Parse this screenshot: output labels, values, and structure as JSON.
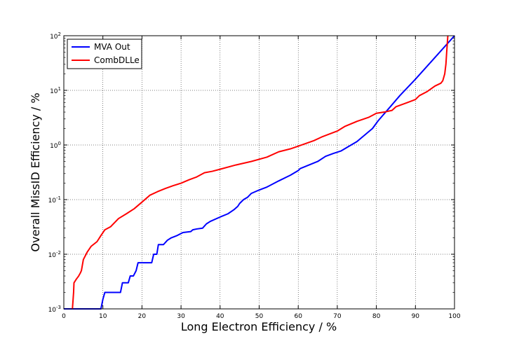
{
  "chart_data": {
    "type": "line",
    "title": "",
    "xlabel": "Long Electron Efficiency / %",
    "ylabel": "Overall MissID Efficiency / %",
    "xlim": [
      0,
      100
    ],
    "ylim": [
      0.001,
      100
    ],
    "yscale": "log",
    "grid": true,
    "legend_position": "top-left",
    "x_ticks": [
      "0",
      "10",
      "20",
      "30",
      "40",
      "50",
      "60",
      "70",
      "80",
      "90",
      "100"
    ],
    "y_ticks": [
      {
        "value": 0.001,
        "base": "10",
        "exp": "-3"
      },
      {
        "value": 0.01,
        "base": "10",
        "exp": "-2"
      },
      {
        "value": 0.1,
        "base": "10",
        "exp": "-1"
      },
      {
        "value": 1,
        "base": "10",
        "exp": "0"
      },
      {
        "value": 10,
        "base": "10",
        "exp": "1"
      },
      {
        "value": 100,
        "base": "10",
        "exp": "2"
      }
    ],
    "series": [
      {
        "name": "MVA Out",
        "color": "#0000ff",
        "points": [
          [
            0.0,
            0.001
          ],
          [
            9.5,
            0.001
          ],
          [
            10.0,
            0.0015
          ],
          [
            10.5,
            0.002
          ],
          [
            14.5,
            0.002
          ],
          [
            15.0,
            0.003
          ],
          [
            16.5,
            0.003
          ],
          [
            17.0,
            0.004
          ],
          [
            17.8,
            0.004
          ],
          [
            18.5,
            0.005
          ],
          [
            19.0,
            0.007
          ],
          [
            22.5,
            0.007
          ],
          [
            23.0,
            0.01
          ],
          [
            23.8,
            0.01
          ],
          [
            24.2,
            0.015
          ],
          [
            25.5,
            0.015
          ],
          [
            26.5,
            0.018
          ],
          [
            27.5,
            0.02
          ],
          [
            29.0,
            0.022
          ],
          [
            30.5,
            0.025
          ],
          [
            32.5,
            0.026
          ],
          [
            33.0,
            0.028
          ],
          [
            34.0,
            0.029
          ],
          [
            35.5,
            0.03
          ],
          [
            36.5,
            0.036
          ],
          [
            37.5,
            0.04
          ],
          [
            40.0,
            0.048
          ],
          [
            42.0,
            0.055
          ],
          [
            43.5,
            0.065
          ],
          [
            44.5,
            0.075
          ],
          [
            45.0,
            0.085
          ],
          [
            46.0,
            0.1
          ],
          [
            47.0,
            0.11
          ],
          [
            48.0,
            0.13
          ],
          [
            50.0,
            0.15
          ],
          [
            52.0,
            0.17
          ],
          [
            55.0,
            0.22
          ],
          [
            58.0,
            0.28
          ],
          [
            60.0,
            0.34
          ],
          [
            60.5,
            0.37
          ],
          [
            65.0,
            0.5
          ],
          [
            67.0,
            0.62
          ],
          [
            69.0,
            0.7
          ],
          [
            71.0,
            0.78
          ],
          [
            73.0,
            0.95
          ],
          [
            75.0,
            1.15
          ],
          [
            79.0,
            2.0
          ],
          [
            80.5,
            2.8
          ],
          [
            83.0,
            4.5
          ],
          [
            86.0,
            8.0
          ],
          [
            90.0,
            16.0
          ],
          [
            95.0,
            40.0
          ],
          [
            100.0,
            100.0
          ]
        ]
      },
      {
        "name": "CombDLLe",
        "color": "#ff0000",
        "points": [
          [
            2.2,
            0.001
          ],
          [
            2.5,
            0.002
          ],
          [
            2.6,
            0.003
          ],
          [
            3.2,
            0.0035
          ],
          [
            3.8,
            0.004
          ],
          [
            4.2,
            0.0045
          ],
          [
            4.5,
            0.005
          ],
          [
            5.0,
            0.008
          ],
          [
            6.0,
            0.011
          ],
          [
            7.0,
            0.014
          ],
          [
            8.5,
            0.017
          ],
          [
            9.5,
            0.022
          ],
          [
            10.5,
            0.028
          ],
          [
            12.0,
            0.032
          ],
          [
            14.0,
            0.045
          ],
          [
            16.0,
            0.055
          ],
          [
            18.0,
            0.068
          ],
          [
            20.0,
            0.09
          ],
          [
            22.0,
            0.12
          ],
          [
            24.0,
            0.14
          ],
          [
            26.0,
            0.16
          ],
          [
            28.0,
            0.18
          ],
          [
            30.0,
            0.2
          ],
          [
            32.0,
            0.23
          ],
          [
            34.0,
            0.26
          ],
          [
            36.0,
            0.31
          ],
          [
            38.0,
            0.33
          ],
          [
            40.0,
            0.36
          ],
          [
            44.0,
            0.43
          ],
          [
            48.0,
            0.5
          ],
          [
            52.0,
            0.6
          ],
          [
            55.0,
            0.75
          ],
          [
            58.0,
            0.85
          ],
          [
            60.0,
            0.95
          ],
          [
            64.0,
            1.2
          ],
          [
            66.0,
            1.4
          ],
          [
            70.0,
            1.8
          ],
          [
            72.0,
            2.2
          ],
          [
            75.0,
            2.7
          ],
          [
            78.0,
            3.2
          ],
          [
            80.0,
            3.8
          ],
          [
            82.0,
            4.0
          ],
          [
            84.0,
            4.3
          ],
          [
            85.0,
            5.0
          ],
          [
            88.0,
            6.0
          ],
          [
            90.0,
            6.8
          ],
          [
            91.0,
            8.0
          ],
          [
            93.0,
            9.5
          ],
          [
            95.0,
            12.0
          ],
          [
            96.5,
            13.5
          ],
          [
            97.0,
            15.0
          ],
          [
            97.5,
            20.0
          ],
          [
            97.8,
            30.0
          ],
          [
            98.0,
            50.0
          ],
          [
            98.2,
            80.0
          ],
          [
            98.3,
            100.0
          ]
        ]
      }
    ]
  }
}
